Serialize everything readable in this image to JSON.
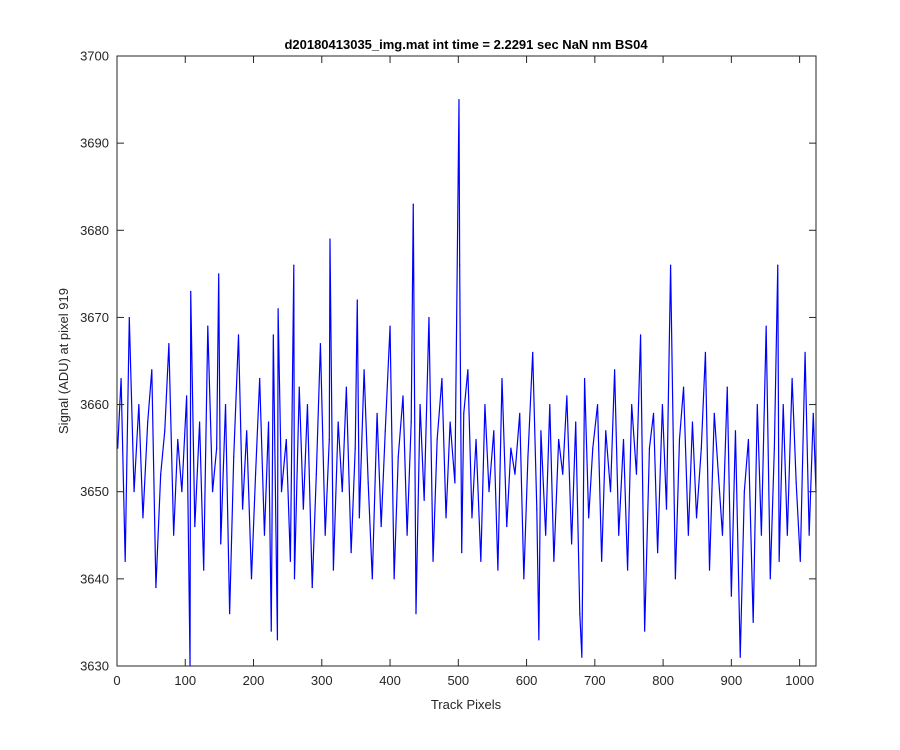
{
  "chart_data": {
    "type": "line",
    "title": "d20180413035_img.mat int time = 2.2291 sec  NaN nm BS04",
    "xlabel": "Track Pixels",
    "ylabel": "Signal (ADU) at pixel 919",
    "xlim": [
      0,
      1024
    ],
    "ylim": [
      3630,
      3700
    ],
    "xticks": [
      0,
      100,
      200,
      300,
      400,
      500,
      600,
      700,
      800,
      900,
      1000
    ],
    "yticks": [
      3630,
      3640,
      3650,
      3660,
      3670,
      3680,
      3690,
      3700
    ],
    "grid": false,
    "legend": "none",
    "series_color": "#0000ff",
    "series": [
      {
        "x": [
          1,
          6,
          12,
          18,
          25,
          32,
          38,
          45,
          51,
          57,
          64,
          70,
          76,
          83,
          89,
          95,
          102,
          107,
          108,
          114,
          121,
          127,
          133,
          140,
          146,
          149,
          152,
          159,
          165,
          171,
          178,
          184,
          190,
          197,
          203,
          209,
          216,
          222,
          226,
          229,
          235,
          236,
          241,
          248,
          254,
          259,
          260,
          267,
          273,
          279,
          286,
          292,
          298,
          305,
          311,
          312,
          317,
          324,
          330,
          336,
          343,
          349,
          352,
          355,
          362,
          368,
          374,
          381,
          387,
          393,
          400,
          406,
          412,
          419,
          425,
          431,
          434,
          438,
          444,
          450,
          457,
          463,
          469,
          476,
          482,
          488,
          495,
          501,
          502,
          505,
          508,
          514,
          520,
          526,
          533,
          539,
          545,
          552,
          558,
          564,
          571,
          577,
          583,
          590,
          596,
          602,
          609,
          615,
          618,
          621,
          628,
          634,
          640,
          647,
          653,
          659,
          666,
          672,
          678,
          681,
          685,
          691,
          697,
          704,
          710,
          716,
          723,
          729,
          735,
          742,
          748,
          754,
          761,
          767,
          773,
          780,
          786,
          792,
          799,
          805,
          811,
          818,
          824,
          830,
          837,
          843,
          849,
          856,
          862,
          868,
          875,
          881,
          887,
          894,
          900,
          906,
          913,
          919,
          925,
          932,
          938,
          944,
          951,
          957,
          963,
          968,
          970,
          976,
          982,
          989,
          995,
          1001,
          1008,
          1014,
          1020,
          1024
        ],
        "values": [
          3655,
          3663,
          3642,
          3670,
          3650,
          3660,
          3647,
          3658,
          3664,
          3639,
          3652,
          3657,
          3667,
          3645,
          3656,
          3650,
          3661,
          3630,
          3673,
          3646,
          3658,
          3641,
          3669,
          3650,
          3655,
          3675,
          3644,
          3660,
          3636,
          3654,
          3668,
          3648,
          3657,
          3640,
          3652,
          3663,
          3645,
          3658,
          3634,
          3668,
          3633,
          3671,
          3650,
          3656,
          3642,
          3676,
          3640,
          3662,
          3648,
          3660,
          3639,
          3652,
          3667,
          3645,
          3656,
          3679,
          3641,
          3658,
          3650,
          3662,
          3643,
          3655,
          3672,
          3647,
          3664,
          3651,
          3640,
          3659,
          3646,
          3657,
          3669,
          3640,
          3654,
          3661,
          3645,
          3658,
          3683,
          3636,
          3660,
          3649,
          3670,
          3642,
          3656,
          3663,
          3647,
          3658,
          3651,
          3695,
          3676,
          3643,
          3659,
          3664,
          3647,
          3656,
          3642,
          3660,
          3650,
          3657,
          3641,
          3663,
          3646,
          3655,
          3652,
          3659,
          3640,
          3654,
          3666,
          3648,
          3633,
          3657,
          3645,
          3660,
          3642,
          3656,
          3652,
          3661,
          3644,
          3658,
          3636,
          3631,
          3663,
          3647,
          3655,
          3660,
          3642,
          3657,
          3650,
          3664,
          3645,
          3656,
          3641,
          3660,
          3652,
          3668,
          3634,
          3655,
          3659,
          3643,
          3660,
          3648,
          3676,
          3640,
          3656,
          3662,
          3645,
          3658,
          3647,
          3655,
          3666,
          3641,
          3659,
          3652,
          3645,
          3662,
          3638,
          3657,
          3631,
          3650,
          3656,
          3635,
          3660,
          3645,
          3669,
          3640,
          3655,
          3676,
          3642,
          3660,
          3645,
          3663,
          3651,
          3642,
          3666,
          3645,
          3659,
          3650
        ]
      }
    ]
  }
}
